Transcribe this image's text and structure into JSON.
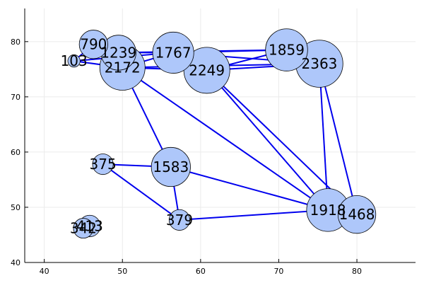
{
  "chart_data": {
    "type": "scatter",
    "title": "",
    "xlabel": "",
    "ylabel": "",
    "xlim": [
      37.5,
      87.5
    ],
    "ylim": [
      40,
      86
    ],
    "xticks": [
      40,
      50,
      60,
      70,
      80
    ],
    "yticks": [
      40,
      50,
      60,
      70,
      80
    ],
    "grid": true,
    "legend": "none",
    "colors": {
      "edge": "#0000ee",
      "node_fill": "#aec7fa",
      "node_stroke": "#000000",
      "grid": "#ebebeb",
      "axis": "#000000"
    },
    "nodes": [
      {
        "id": "790",
        "x": 46.3,
        "y": 79.5,
        "size": 790
      },
      {
        "id": "103",
        "x": 43.8,
        "y": 76.5,
        "size": 103
      },
      {
        "id": "1239",
        "x": 49.5,
        "y": 78.0,
        "size": 1239
      },
      {
        "id": "2172",
        "x": 50.0,
        "y": 75.3,
        "size": 2172
      },
      {
        "id": "1767",
        "x": 56.5,
        "y": 78.0,
        "size": 1767
      },
      {
        "id": "2249",
        "x": 60.8,
        "y": 74.8,
        "size": 2249
      },
      {
        "id": "1859",
        "x": 71.0,
        "y": 78.5,
        "size": 1859
      },
      {
        "id": "2363",
        "x": 75.2,
        "y": 76.0,
        "size": 2363
      },
      {
        "id": "375",
        "x": 47.5,
        "y": 57.8,
        "size": 375
      },
      {
        "id": "1583",
        "x": 56.2,
        "y": 57.3,
        "size": 1583
      },
      {
        "id": "379",
        "x": 57.3,
        "y": 47.7,
        "size": 379
      },
      {
        "id": "1918",
        "x": 76.3,
        "y": 49.5,
        "size": 1918
      },
      {
        "id": "1468",
        "x": 80.0,
        "y": 48.7,
        "size": 1468
      },
      {
        "id": "413",
        "x": 45.8,
        "y": 46.6,
        "size": 413
      },
      {
        "id": "342",
        "x": 45.0,
        "y": 46.2,
        "size": 342
      }
    ],
    "edges": [
      [
        "103",
        "790"
      ],
      [
        "103",
        "2172"
      ],
      [
        "103",
        "1767"
      ],
      [
        "1239",
        "1767"
      ],
      [
        "1239",
        "1859"
      ],
      [
        "2172",
        "1767"
      ],
      [
        "2172",
        "2249"
      ],
      [
        "2172",
        "2363"
      ],
      [
        "1767",
        "1859"
      ],
      [
        "2249",
        "1859"
      ],
      [
        "1767",
        "2363"
      ],
      [
        "2249",
        "2363"
      ],
      [
        "2172",
        "1583"
      ],
      [
        "2172",
        "1918"
      ],
      [
        "2249",
        "1918"
      ],
      [
        "2249",
        "1468"
      ],
      [
        "2363",
        "1918"
      ],
      [
        "2363",
        "1468"
      ],
      [
        "375",
        "1583"
      ],
      [
        "375",
        "379"
      ],
      [
        "1583",
        "379"
      ],
      [
        "1583",
        "1918"
      ],
      [
        "379",
        "1918"
      ]
    ]
  }
}
